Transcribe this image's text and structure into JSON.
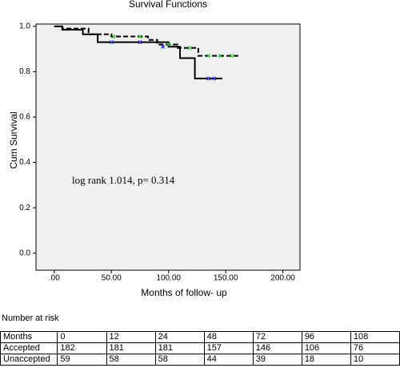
{
  "chart_data": {
    "type": "step",
    "title": "Survival Functions",
    "xlabel": "Months of follow- up",
    "ylabel": "Cum Survival",
    "annotation": "log rank 1.014, p= 0.314",
    "xlim": [
      -16,
      215
    ],
    "ylim": [
      -0.075,
      1.01
    ],
    "xticks": [
      {
        "value": 0,
        "label": ".00"
      },
      {
        "value": 50,
        "label": "50.00"
      },
      {
        "value": 100,
        "label": "100.00"
      },
      {
        "value": 150,
        "label": "150.00"
      },
      {
        "value": 200,
        "label": "200.00"
      }
    ],
    "yticks": [
      {
        "value": 0,
        "label": "0.0"
      },
      0.2,
      0.4,
      0.6,
      0.8,
      {
        "value": 1,
        "label": "1.0"
      }
    ],
    "series": [
      {
        "color": "#000000",
        "dashed": false,
        "x": [
          0,
          7,
          25,
          38,
          85,
          100,
          110,
          123,
          147
        ],
        "values": [
          1.0,
          0.985,
          0.965,
          0.93,
          0.93,
          0.91,
          0.86,
          0.77,
          0.77
        ],
        "censor_color": "#3a3ad0",
        "censor_x": [
          50,
          75,
          95,
          135,
          140
        ],
        "censor_values": [
          0.93,
          0.93,
          0.91,
          0.77,
          0.77
        ]
      },
      {
        "color": "#000000",
        "dashed": true,
        "x": [
          0,
          7,
          30,
          50,
          82,
          90,
          108,
          126,
          161
        ],
        "values": [
          1.0,
          0.99,
          0.965,
          0.955,
          0.94,
          0.92,
          0.905,
          0.87,
          0.87
        ],
        "censor_color": "#3fc83f",
        "censor_x": [
          52,
          75,
          100,
          118,
          135,
          145,
          155
        ],
        "censor_values": [
          0.955,
          0.955,
          0.92,
          0.905,
          0.87,
          0.87,
          0.87
        ]
      }
    ]
  },
  "risk_title": "Number at risk",
  "table": {
    "rows": [
      [
        "Months",
        "0",
        "12",
        "24",
        "48",
        "72",
        "96",
        "108"
      ],
      [
        "Accepted",
        "182",
        "181",
        "181",
        "157",
        "146",
        "106",
        "76"
      ],
      [
        "Unaccepted",
        "59",
        "58",
        "58",
        "44",
        "39",
        "18",
        "10"
      ]
    ]
  }
}
